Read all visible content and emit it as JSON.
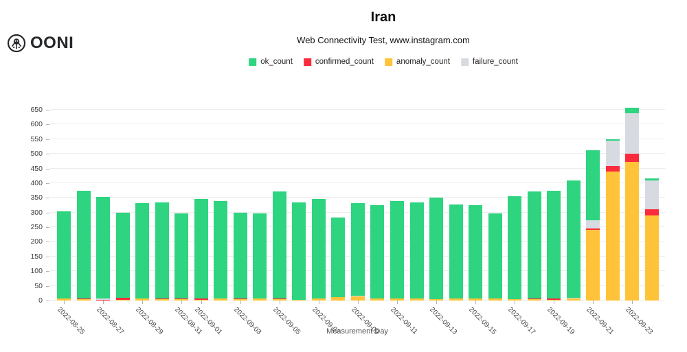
{
  "brand": {
    "name": "OONI"
  },
  "header": {
    "title": "Iran",
    "subtitle": "Web Connectivity Test, www.instagram.com"
  },
  "legend": [
    {
      "label": "ok_count",
      "color": "#2ed47f"
    },
    {
      "label": "confirmed_count",
      "color": "#fa2b3d"
    },
    {
      "label": "anomaly_count",
      "color": "#ffc33a"
    },
    {
      "label": "failure_count",
      "color": "#d7dbe1"
    }
  ],
  "chart_data": {
    "type": "bar",
    "stacked": true,
    "title": "Iran",
    "subtitle": "Web Connectivity Test, www.instagram.com",
    "xlabel": "Measurement Day",
    "ylabel": "",
    "ylim": [
      0,
      650
    ],
    "ytick_step": 50,
    "yticks": [
      0,
      50,
      100,
      150,
      200,
      250,
      300,
      350,
      400,
      450,
      500,
      550,
      600,
      650
    ],
    "grid": true,
    "legend_position": "top-center",
    "stack_order_bottom_to_top": [
      "anomaly_count",
      "confirmed_count",
      "failure_count",
      "ok_count"
    ],
    "categories": [
      "2022-08-25",
      "2022-08-26",
      "2022-08-27",
      "2022-08-28",
      "2022-08-29",
      "2022-08-30",
      "2022-08-31",
      "2022-09-01",
      "2022-09-02",
      "2022-09-03",
      "2022-09-04",
      "2022-09-05",
      "2022-09-06",
      "2022-09-07",
      "2022-09-08",
      "2022-09-09",
      "2022-09-10",
      "2022-09-11",
      "2022-09-12",
      "2022-09-13",
      "2022-09-14",
      "2022-09-15",
      "2022-09-16",
      "2022-09-17",
      "2022-09-18",
      "2022-09-19",
      "2022-09-20",
      "2022-09-21",
      "2022-09-22",
      "2022-09-23",
      "2022-09-24"
    ],
    "series": [
      {
        "name": "anomaly_count",
        "color": "#ffc33a",
        "values": [
          6,
          5,
          0,
          3,
          7,
          5,
          5,
          3,
          6,
          5,
          6,
          4,
          3,
          6,
          11,
          14,
          6,
          6,
          6,
          5,
          6,
          6,
          6,
          5,
          5,
          3,
          7,
          242,
          440,
          473,
          290
        ]
      },
      {
        "name": "confirmed_count",
        "color": "#fa2b3d",
        "values": [
          0,
          2,
          3,
          6,
          0,
          2,
          1,
          3,
          0,
          1,
          0,
          3,
          0,
          0,
          0,
          0,
          2,
          0,
          0,
          0,
          0,
          0,
          2,
          0,
          2,
          4,
          0,
          3,
          18,
          27,
          20
        ]
      },
      {
        "name": "failure_count",
        "color": "#d7dbe1",
        "values": [
          0,
          0,
          4,
          0,
          0,
          0,
          0,
          0,
          0,
          0,
          0,
          0,
          0,
          0,
          0,
          3,
          0,
          0,
          0,
          0,
          0,
          0,
          0,
          0,
          0,
          0,
          3,
          28,
          86,
          138,
          99
        ]
      },
      {
        "name": "ok_count",
        "color": "#2ed47f",
        "values": [
          299,
          368,
          345,
          291,
          324,
          327,
          292,
          341,
          333,
          294,
          291,
          364,
          331,
          341,
          271,
          316,
          317,
          333,
          328,
          345,
          322,
          319,
          289,
          351,
          364,
          367,
          399,
          240,
          6,
          20,
          7
        ]
      }
    ],
    "xticks": [
      {
        "i": 0,
        "label": "2022-08-25"
      },
      {
        "i": 2,
        "label": "2022-08-27"
      },
      {
        "i": 4,
        "label": "2022-08-29"
      },
      {
        "i": 6,
        "label": "2022-08-31"
      },
      {
        "i": 7,
        "label": "2022-09-01"
      },
      {
        "i": 9,
        "label": "2022-09-03"
      },
      {
        "i": 11,
        "label": "2022-09-05"
      },
      {
        "i": 13,
        "label": "2022-09-07"
      },
      {
        "i": 15,
        "label": "2022-09-09"
      },
      {
        "i": 17,
        "label": "2022-09-11"
      },
      {
        "i": 19,
        "label": "2022-09-13"
      },
      {
        "i": 21,
        "label": "2022-09-15"
      },
      {
        "i": 23,
        "label": "2022-09-17"
      },
      {
        "i": 25,
        "label": "2022-09-19"
      },
      {
        "i": 27,
        "label": "2022-09-21"
      },
      {
        "i": 29,
        "label": "2022-09-23"
      }
    ]
  }
}
